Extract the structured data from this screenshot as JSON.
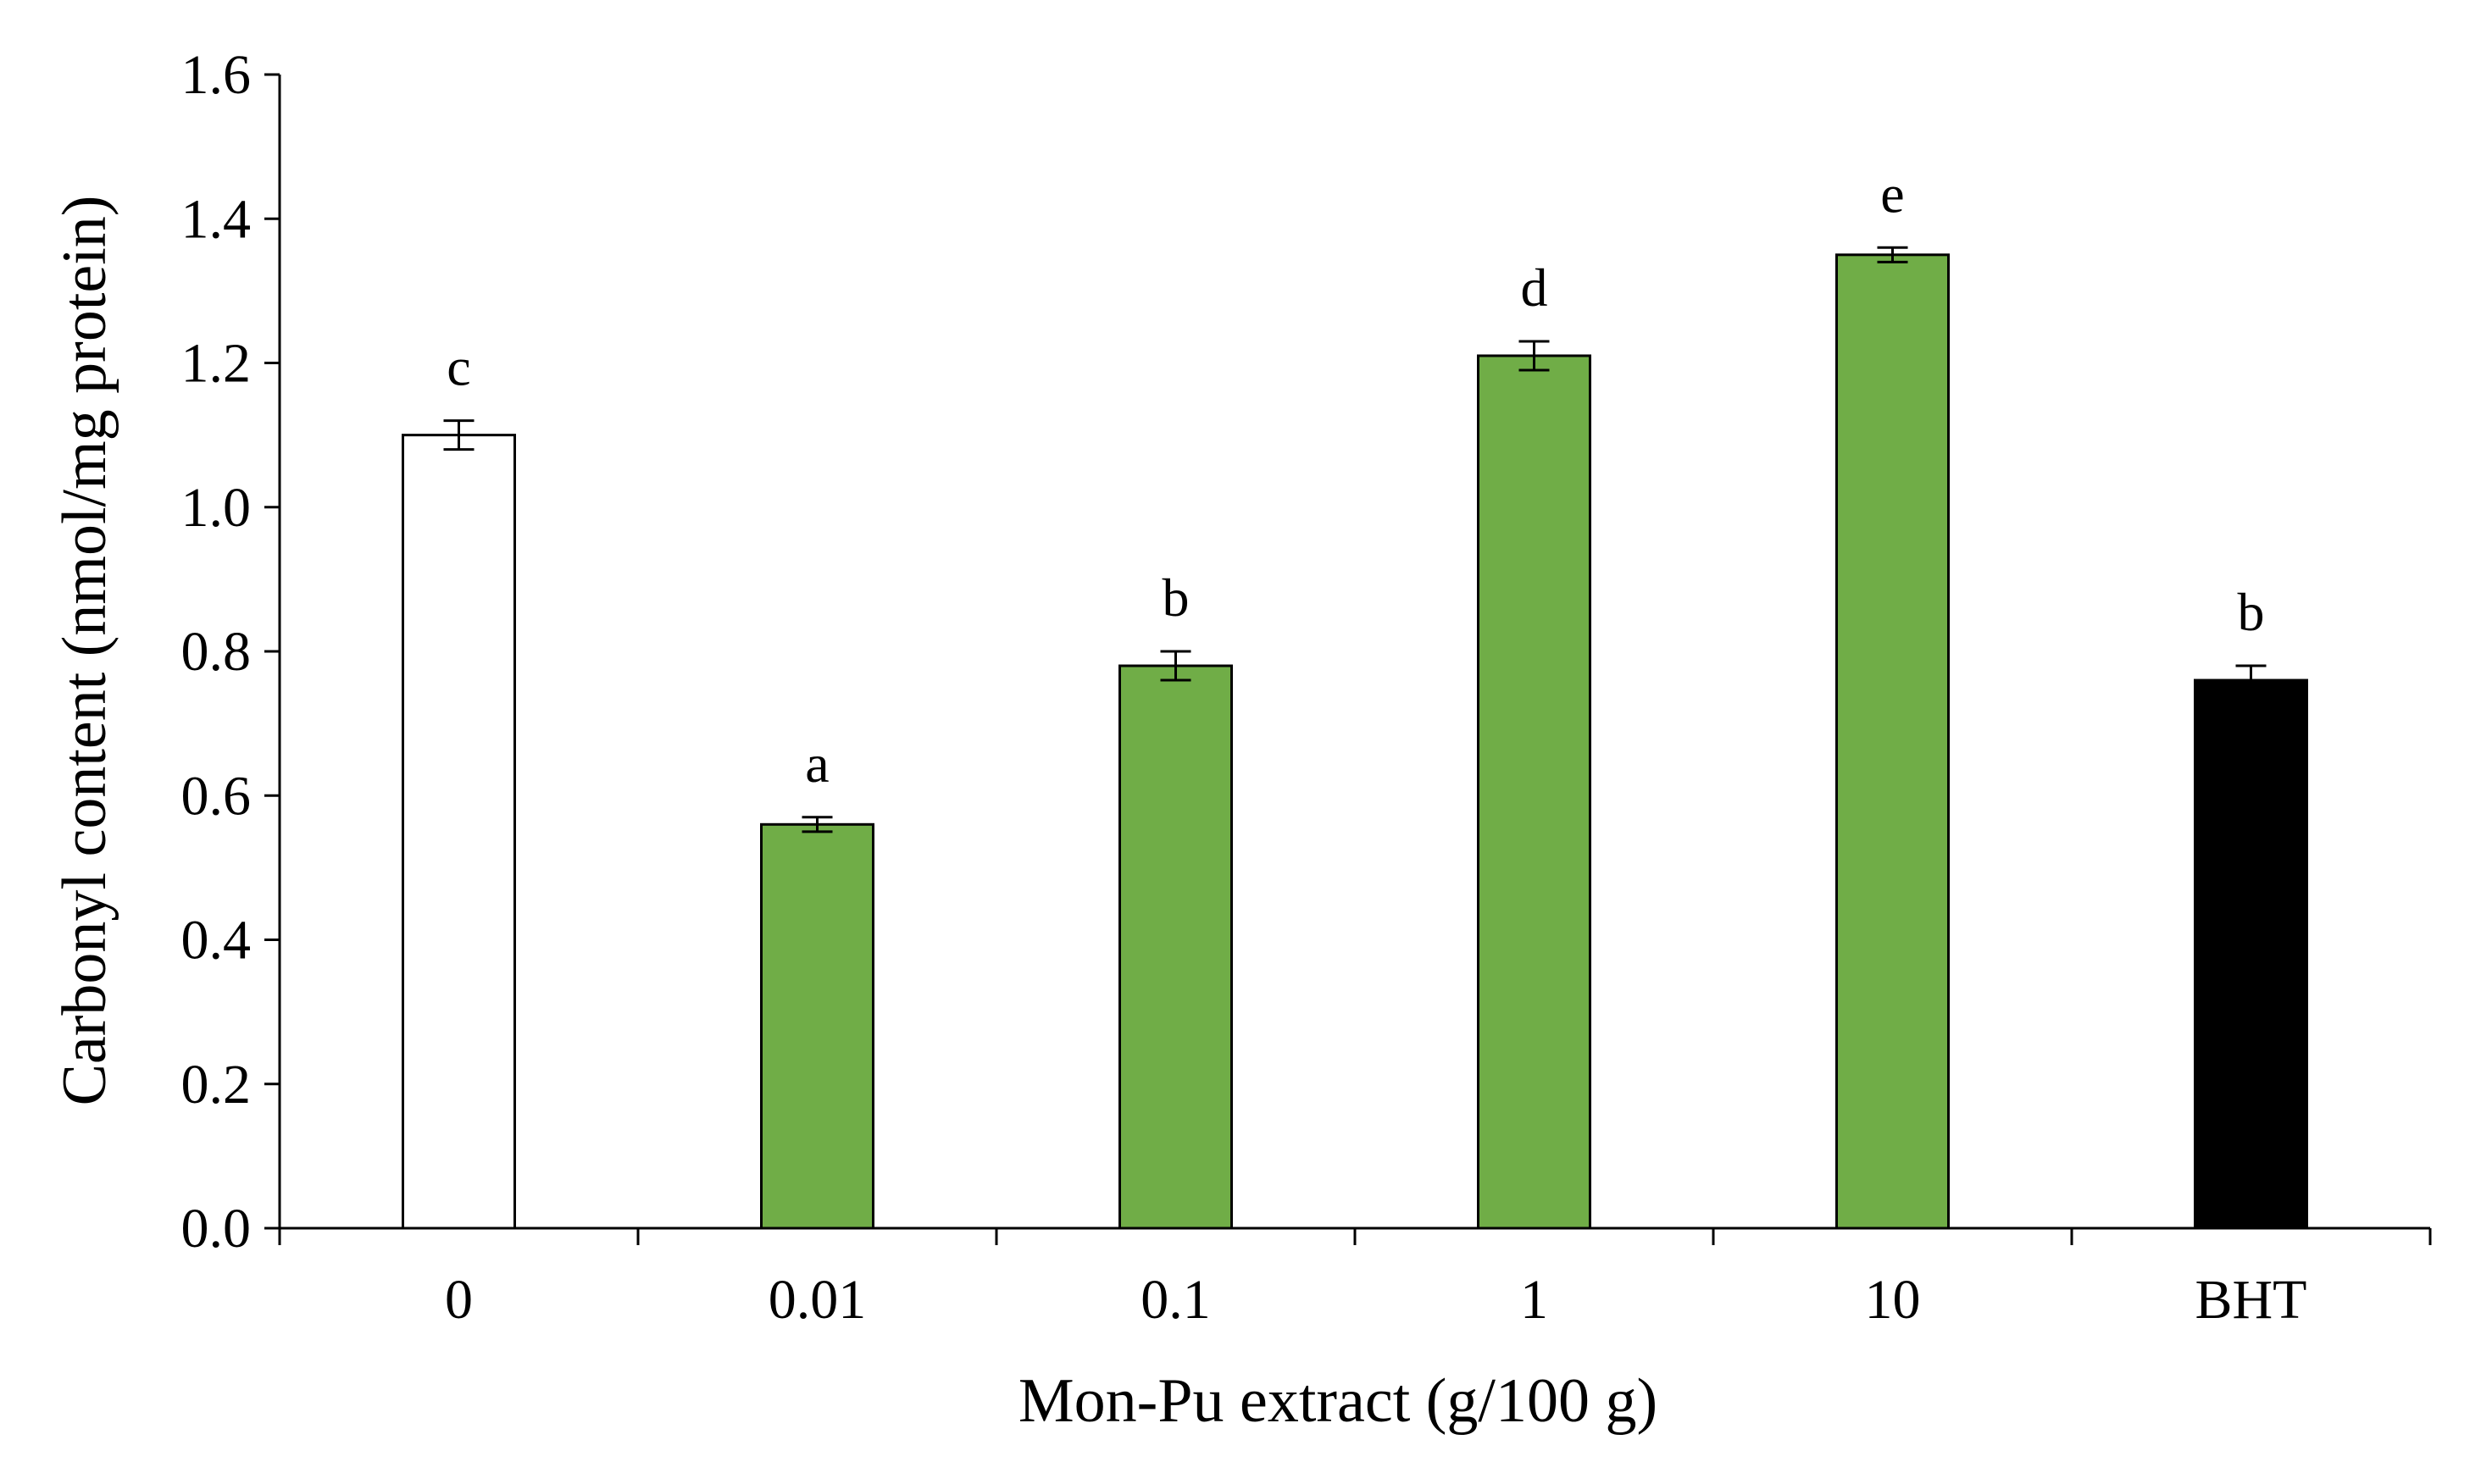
{
  "chart_data": {
    "type": "bar",
    "title": "",
    "xlabel": "Mon-Pu extract (g/100 g)",
    "ylabel": "Carbonyl content (nmol/mg protein)",
    "ylim": [
      0,
      1.6
    ],
    "yticks": [
      "0.0",
      "0.2",
      "0.4",
      "0.6",
      "0.8",
      "1.0",
      "1.2",
      "1.4",
      "1.6"
    ],
    "categories": [
      "0",
      "0.01",
      "0.1",
      "1",
      "10",
      "BHT"
    ],
    "values": [
      1.1,
      0.56,
      0.78,
      1.21,
      1.35,
      0.76
    ],
    "errors": [
      0.02,
      0.01,
      0.02,
      0.02,
      0.01,
      0.02
    ],
    "significance": [
      "c",
      "a",
      "b",
      "d",
      "e",
      "b"
    ],
    "bar_colors": [
      "#ffffff",
      "#70ad47",
      "#70ad47",
      "#70ad47",
      "#70ad47",
      "#000000"
    ],
    "grid": false,
    "legend": "none"
  }
}
